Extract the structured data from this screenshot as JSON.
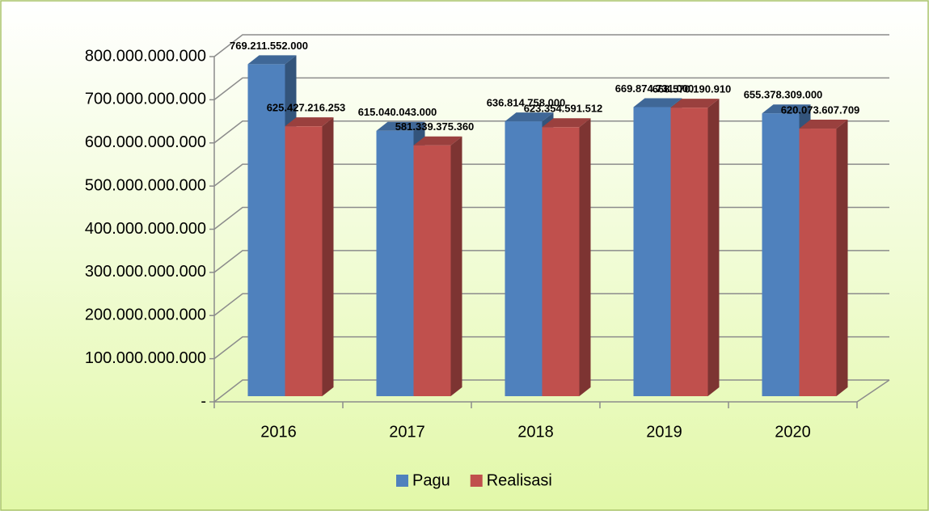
{
  "chart_data": {
    "type": "bar3d",
    "categories": [
      "2016",
      "2017",
      "2018",
      "2019",
      "2020"
    ],
    "series": [
      {
        "name": "Pagu",
        "color": "#4f81bd",
        "values": [
          769211552000,
          615040043000,
          636814758000,
          669874731000,
          655378309000
        ],
        "value_labels": [
          "769.211.552.000",
          "615.040.043.000",
          "636.814.758.000",
          "669.874.731.000",
          "655.378.309.000"
        ]
      },
      {
        "name": "Realisasi",
        "color": "#c0504d",
        "values": [
          625427216253,
          581339375360,
          623354591512,
          668570190910,
          620073607709
        ],
        "value_labels": [
          "625.427.216.253",
          "581.339.375.360",
          "623.354.591.512",
          "668.570.190.910",
          "620.073.607.709"
        ]
      }
    ],
    "ylim": [
      0,
      800000000000
    ],
    "yticks": [
      {
        "value": 0,
        "label": "-"
      },
      {
        "value": 100000000000,
        "label": "100.000.000.000"
      },
      {
        "value": 200000000000,
        "label": "200.000.000.000"
      },
      {
        "value": 300000000000,
        "label": "300.000.000.000"
      },
      {
        "value": 400000000000,
        "label": "400.000.000.000"
      },
      {
        "value": 500000000000,
        "label": "500.000.000.000"
      },
      {
        "value": 600000000000,
        "label": "600.000.000.000"
      },
      {
        "value": 700000000000,
        "label": "700.000.000.000"
      },
      {
        "value": 800000000000,
        "label": "800.000.000.000"
      }
    ],
    "grid": true,
    "legend": "bottom"
  }
}
